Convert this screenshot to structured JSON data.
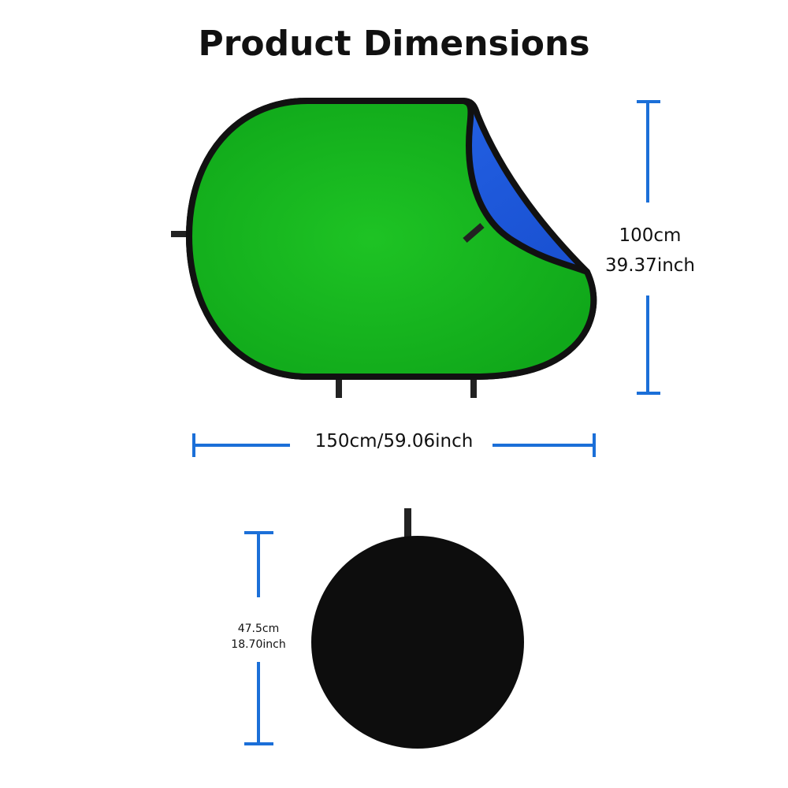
{
  "title": "Product Dimensions",
  "height_label": {
    "cm": "100cm",
    "inch": "39.37inch"
  },
  "width_label": "150cm/59.06inch",
  "folded_label": {
    "cm": "47.5cm",
    "inch": "18.70inch"
  },
  "colors": {
    "dimension_line": "#1b6fd8",
    "green_side": "#19b81f",
    "blue_side": "#1f5fe0",
    "frame": "#111111"
  }
}
